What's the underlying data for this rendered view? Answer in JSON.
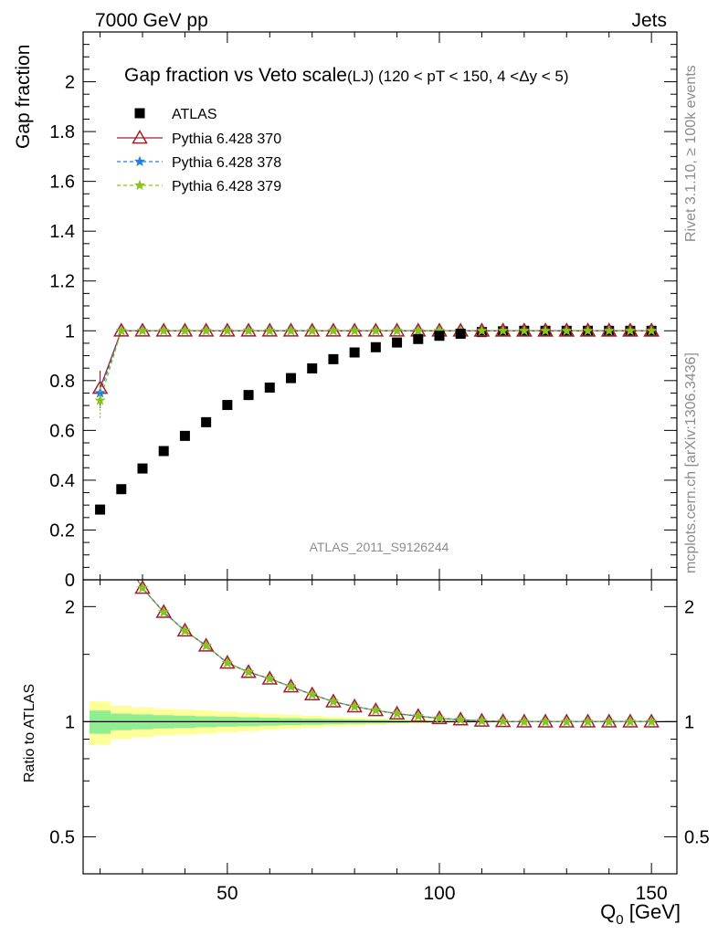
{
  "header": {
    "left": "7000 GeV pp",
    "right": "Jets"
  },
  "side": {
    "rivet": "Rivet 3.1.10, ≥ 100k events",
    "mcplots": "mcplots.cern.ch [arXiv:1306.3436]"
  },
  "chart_data": {
    "type": "scatter",
    "title": "Gap fraction vs Veto scale",
    "subtitle": "(LJ) (120 < pT < 150, 4 <Δy < 5)",
    "analysis_label": "ATLAS_2011_S9126244",
    "xlabel": "Q_0 [GeV]",
    "ylabel": "Gap fraction",
    "ratio_ylabel": "Ratio to ATLAS",
    "xlim": [
      16,
      156
    ],
    "ylim": [
      0,
      2.2
    ],
    "ratio_ylim": [
      0.4,
      2.35
    ],
    "ratio_scale": "log",
    "x_ticks": [
      50,
      100,
      150
    ],
    "y_ticks": [
      0,
      0.2,
      0.4,
      0.6,
      0.8,
      1,
      1.2,
      1.4,
      1.6,
      1.8,
      2
    ],
    "y_tick_labels": [
      "0",
      "0.2",
      "0.4",
      "0.6",
      "0.8",
      "1",
      "1.2",
      "1.4",
      "1.6",
      "1.8",
      "2"
    ],
    "ratio_ticks": [
      0.5,
      1,
      2
    ],
    "ratio_tick_labels": [
      "0.5",
      "1",
      "2"
    ],
    "x": [
      20,
      25,
      30,
      35,
      40,
      45,
      50,
      55,
      60,
      65,
      70,
      75,
      80,
      85,
      90,
      95,
      100,
      105,
      110,
      115,
      120,
      125,
      130,
      135,
      140,
      145,
      150
    ],
    "series": [
      {
        "name": "ATLAS",
        "marker": "square",
        "color": "#000000",
        "values": [
          0.282,
          0.364,
          0.447,
          0.517,
          0.578,
          0.633,
          0.702,
          0.742,
          0.772,
          0.81,
          0.849,
          0.886,
          0.913,
          0.934,
          0.953,
          0.967,
          0.98,
          0.988,
          0.995,
          0.998,
          1.0,
          1.0,
          1.0,
          1.0,
          1.0,
          1.0,
          1.0
        ]
      },
      {
        "name": "Pythia 6.428 370",
        "marker": "triangle",
        "color": "#a0202a",
        "values": [
          0.77,
          1.0,
          1.0,
          1.0,
          1.0,
          1.0,
          1.0,
          1.0,
          1.0,
          1.0,
          1.0,
          1.0,
          1.0,
          1.0,
          1.0,
          1.0,
          1.0,
          1.0,
          1.0,
          1.0,
          1.0,
          1.0,
          1.0,
          1.0,
          1.0,
          1.0,
          1.0
        ],
        "errors": [
          0.07,
          0,
          0,
          0,
          0,
          0,
          0,
          0,
          0,
          0,
          0,
          0,
          0,
          0,
          0,
          0,
          0,
          0,
          0,
          0,
          0,
          0,
          0,
          0,
          0,
          0,
          0
        ]
      },
      {
        "name": "Pythia 6.428 378",
        "marker": "star",
        "color": "#1f7fe0",
        "values": [
          0.75,
          1.0,
          1.0,
          1.0,
          1.0,
          1.0,
          1.0,
          1.0,
          1.0,
          1.0,
          1.0,
          1.0,
          1.0,
          1.0,
          1.0,
          1.0,
          1.0,
          1.0,
          1.0,
          1.0,
          1.0,
          1.0,
          1.0,
          1.0,
          1.0,
          1.0,
          1.0
        ],
        "errors": [
          0.06,
          0,
          0,
          0,
          0,
          0,
          0,
          0,
          0,
          0,
          0,
          0,
          0,
          0,
          0,
          0,
          0,
          0,
          0,
          0,
          0,
          0,
          0,
          0,
          0,
          0,
          0
        ]
      },
      {
        "name": "Pythia 6.428 379",
        "marker": "star",
        "color": "#8ac41a",
        "values": [
          0.72,
          1.0,
          1.0,
          1.0,
          1.0,
          1.0,
          1.0,
          1.0,
          1.0,
          1.0,
          1.0,
          1.0,
          1.0,
          1.0,
          1.0,
          1.0,
          1.0,
          1.0,
          1.0,
          1.0,
          1.0,
          1.0,
          1.0,
          1.0,
          1.0,
          1.0,
          1.0
        ],
        "errors": [
          0.07,
          0,
          0,
          0,
          0,
          0,
          0,
          0,
          0,
          0,
          0,
          0,
          0,
          0,
          0,
          0,
          0,
          0,
          0,
          0,
          0,
          0,
          0,
          0,
          0,
          0,
          0
        ]
      }
    ],
    "ratio_band_inner": [
      0.07,
      0.05,
      0.045,
      0.04,
      0.037,
      0.033,
      0.03,
      0.027,
      0.024,
      0.021,
      0.018,
      0.016,
      0.013,
      0.011,
      0.009,
      0.007,
      0.005,
      0.004,
      0.003,
      0.002,
      0.002,
      0.001,
      0.001,
      0.001,
      0.001,
      0.001,
      0.001
    ],
    "ratio_band_outer": [
      0.13,
      0.1,
      0.09,
      0.08,
      0.075,
      0.07,
      0.062,
      0.055,
      0.048,
      0.042,
      0.036,
      0.03,
      0.025,
      0.02,
      0.016,
      0.012,
      0.009,
      0.007,
      0.005,
      0.004,
      0.003,
      0.002,
      0.002,
      0.002,
      0.002,
      0.002,
      0.002
    ],
    "band_colors": {
      "inner": "#90ee90",
      "outer": "#ffff99"
    }
  }
}
